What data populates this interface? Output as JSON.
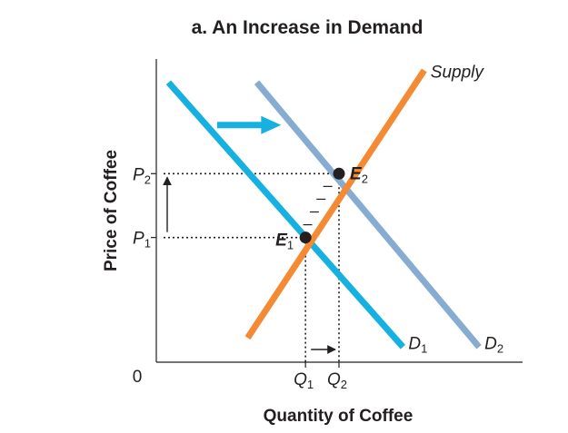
{
  "chart_data": {
    "type": "line",
    "title": "a. An Increase in Demand",
    "xlabel": "Quantity of Coffee",
    "ylabel": "Price of Coffee",
    "origin_label": "0",
    "series": [
      {
        "name": "Supply",
        "color": "#f58a34",
        "points": [
          [
            1.5,
            0.4
          ],
          [
            4.4,
            4.8
          ]
        ]
      },
      {
        "name": "D",
        "sub": "1",
        "color": "#16b1e0",
        "points": [
          [
            0.2,
            4.6
          ],
          [
            4.05,
            0.25
          ]
        ]
      },
      {
        "name": "D",
        "sub": "2",
        "color": "#87acd1",
        "points": [
          [
            1.65,
            4.6
          ],
          [
            5.3,
            0.25
          ]
        ]
      }
    ],
    "equilibria": [
      {
        "name": "E",
        "sub": "1",
        "x": 2.45,
        "y": 2.05
      },
      {
        "name": "E",
        "sub": "2",
        "x": 3.0,
        "y": 3.1
      }
    ],
    "price_ticks": [
      {
        "label": "P",
        "sub": "1",
        "value": 2.05
      },
      {
        "label": "P",
        "sub": "2",
        "value": 3.1
      }
    ],
    "quantity_ticks": [
      {
        "label": "Q",
        "sub": "1",
        "value": 2.45
      },
      {
        "label": "Q",
        "sub": "2",
        "value": 3.0
      }
    ],
    "shift_arrow": {
      "from": [
        1.0,
        3.9
      ],
      "to": [
        2.05,
        3.9
      ],
      "color": "#16b1e0"
    },
    "xlim": [
      0,
      6
    ],
    "ylim": [
      0,
      5
    ]
  }
}
